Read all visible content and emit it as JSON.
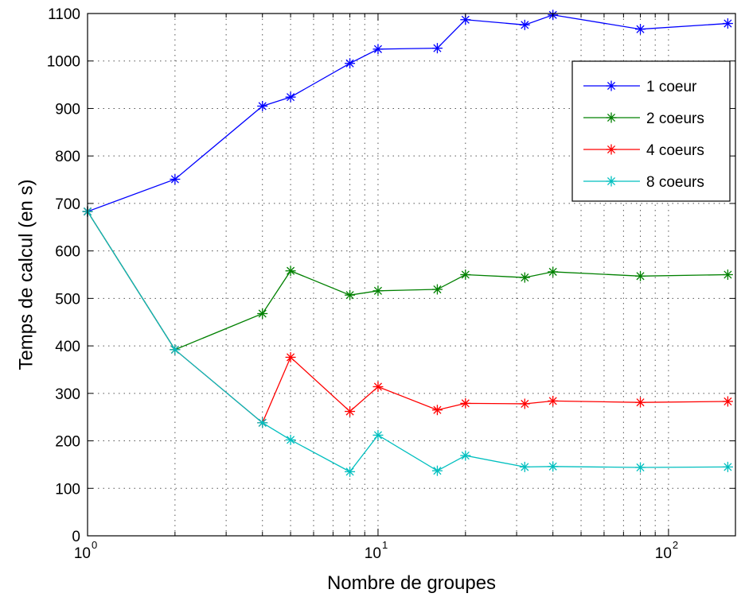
{
  "chart_data": {
    "type": "line",
    "xlabel": "Nombre de groupes",
    "ylabel": "Temps de calcul (en s)",
    "xscale": "log",
    "xlim": [
      1,
      170
    ],
    "ylim": [
      0,
      1100
    ],
    "yticks": [
      0,
      100,
      200,
      300,
      400,
      500,
      600,
      700,
      800,
      900,
      1000,
      1100
    ],
    "xticks": [
      {
        "value": 1,
        "base": "10",
        "exp": "0"
      },
      {
        "value": 10,
        "base": "10",
        "exp": "1"
      },
      {
        "value": 100,
        "base": "10",
        "exp": "2"
      }
    ],
    "grid": true,
    "legend_position": "top-right",
    "marker": "asterisk",
    "x": [
      1,
      2,
      4,
      5,
      8,
      10,
      16,
      20,
      32,
      40,
      80,
      160
    ],
    "series": [
      {
        "name": "1 coeur",
        "color": "#0000ff",
        "values": [
          683,
          751,
          905,
          924,
          995,
          1025,
          1027,
          1087,
          1076,
          1097,
          1067,
          1079
        ]
      },
      {
        "name": "2 coeurs",
        "color": "#008000",
        "values": [
          683,
          392,
          468,
          558,
          507,
          516,
          519,
          550,
          544,
          556,
          547,
          550
        ]
      },
      {
        "name": "4 coeurs",
        "color": "#ff0000",
        "values": [
          683,
          392,
          238,
          376,
          262,
          314,
          265,
          279,
          278,
          284,
          281,
          283
        ]
      },
      {
        "name": "8 coeurs",
        "color": "#00bfbf",
        "values": [
          683,
          392,
          238,
          202,
          135,
          212,
          137,
          169,
          145,
          146,
          144,
          145
        ]
      }
    ]
  }
}
